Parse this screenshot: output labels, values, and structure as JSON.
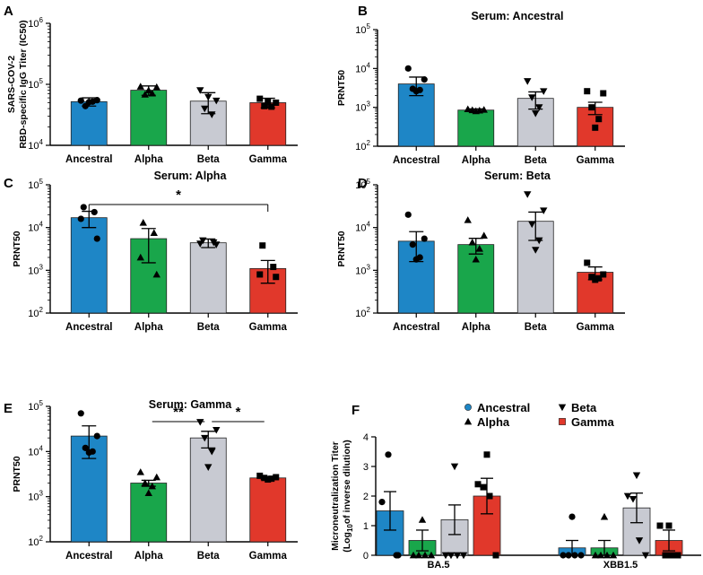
{
  "colors": {
    "Ancestral": "#1e86c6",
    "Alpha": "#19a64b",
    "Beta": "#c8cad2",
    "Gamma": "#e1382b"
  },
  "categories": [
    "Ancestral",
    "Alpha",
    "Beta",
    "Gamma"
  ],
  "chart_data": [
    {
      "id": "A",
      "type": "bar",
      "panel_label": "A",
      "title": "",
      "ylabel": [
        "SARS-COV-2",
        "RBD-specific IgG Titer (IC50)"
      ],
      "yscale": "log",
      "ylim": [
        10000,
        1000000
      ],
      "tick_labels": [
        {
          "base": "10",
          "exp": "4"
        },
        {
          "base": "10",
          "exp": "5"
        },
        {
          "base": "10",
          "exp": "6"
        }
      ],
      "categories": [
        "Ancestral",
        "Alpha",
        "Beta",
        "Gamma"
      ],
      "values": [
        52000,
        80000,
        53000,
        50000
      ],
      "errors": [
        8000,
        14000,
        20000,
        9000
      ],
      "points": [
        [
          54000,
          55000,
          44000,
          52000,
          51000
        ],
        [
          92000,
          90000,
          68000,
          71000,
          80000
        ],
        [
          80000,
          54000,
          40000,
          32000,
          62000
        ],
        [
          58000,
          50000,
          44000,
          43000,
          52000
        ]
      ],
      "markers": [
        "circle",
        "triangle",
        "triangle-down",
        "square"
      ],
      "significance": []
    },
    {
      "id": "B",
      "type": "bar",
      "panel_label": "B",
      "title": "Serum: Ancestral",
      "ylabel": [
        "PRNT50"
      ],
      "yscale": "log",
      "ylim": [
        100,
        100000
      ],
      "tick_labels": [
        {
          "base": "10",
          "exp": "2"
        },
        {
          "base": "10",
          "exp": "3"
        },
        {
          "base": "10",
          "exp": "4"
        },
        {
          "base": "10",
          "exp": "5"
        }
      ],
      "categories": [
        "Ancestral",
        "Alpha",
        "Beta",
        "Gamma"
      ],
      "values": [
        4000,
        850,
        1700,
        1000
      ],
      "errors": [
        2000,
        60,
        800,
        350
      ],
      "points": [
        [
          10000,
          5200,
          3000,
          2800,
          2600
        ],
        [
          900,
          870,
          850,
          830,
          800
        ],
        [
          4700,
          2600,
          1800,
          1000,
          700
        ],
        [
          2600,
          2300,
          1000,
          500,
          300
        ]
      ],
      "markers": [
        "circle",
        "triangle",
        "triangle-down",
        "square"
      ],
      "significance": []
    },
    {
      "id": "C",
      "type": "bar",
      "panel_label": "C",
      "title": "Serum: Alpha",
      "ylabel": [
        "PRNT50"
      ],
      "yscale": "log",
      "ylim": [
        100,
        100000
      ],
      "tick_labels": [
        {
          "base": "10",
          "exp": "2"
        },
        {
          "base": "10",
          "exp": "3"
        },
        {
          "base": "10",
          "exp": "4"
        },
        {
          "base": "10",
          "exp": "5"
        }
      ],
      "categories": [
        "Ancestral",
        "Alpha",
        "Beta",
        "Gamma"
      ],
      "values": [
        17000,
        5500,
        4400,
        1100
      ],
      "errors": [
        7000,
        4000,
        1000,
        600
      ],
      "points": [
        [
          30000,
          23000,
          16000,
          5500
        ],
        [
          13000,
          7500,
          2000,
          800
        ],
        [
          5000,
          4500,
          4200,
          4000
        ],
        [
          3800,
          1200,
          800,
          700
        ]
      ],
      "markers": [
        "circle",
        "triangle",
        "triangle-down",
        "square"
      ],
      "significance": [
        {
          "from": 0,
          "to": 3,
          "label": "*"
        }
      ]
    },
    {
      "id": "D",
      "type": "bar",
      "panel_label": "D",
      "title": "Serum: Beta",
      "ylabel": [
        "PRNT50"
      ],
      "yscale": "log",
      "ylim": [
        100,
        100000
      ],
      "tick_labels": [
        {
          "base": "10",
          "exp": "2"
        },
        {
          "base": "10",
          "exp": "3"
        },
        {
          "base": "10",
          "exp": "4"
        },
        {
          "base": "10",
          "exp": "5"
        }
      ],
      "categories": [
        "Ancestral",
        "Alpha",
        "Beta",
        "Gamma"
      ],
      "values": [
        4800,
        4000,
        14000,
        900
      ],
      "errors": [
        3200,
        1600,
        9000,
        300
      ],
      "points": [
        [
          20000,
          5500,
          4000,
          2000,
          1800
        ],
        [
          15000,
          6500,
          4500,
          3200,
          1800
        ],
        [
          60000,
          25000,
          12000,
          5000,
          3000
        ],
        [
          1500,
          800,
          700,
          650,
          600
        ]
      ],
      "markers": [
        "circle",
        "triangle",
        "triangle-down",
        "square"
      ],
      "significance": []
    },
    {
      "id": "E",
      "type": "bar",
      "panel_label": "E",
      "title": "Serum: Gamma",
      "ylabel": [
        "PRNT50"
      ],
      "yscale": "log",
      "ylim": [
        100,
        100000
      ],
      "tick_labels": [
        {
          "base": "10",
          "exp": "2"
        },
        {
          "base": "10",
          "exp": "3"
        },
        {
          "base": "10",
          "exp": "4"
        },
        {
          "base": "10",
          "exp": "5"
        }
      ],
      "categories": [
        "Ancestral",
        "Alpha",
        "Beta",
        "Gamma"
      ],
      "values": [
        22000,
        2000,
        20000,
        2600
      ],
      "errors": [
        15000,
        300,
        8000,
        200
      ],
      "points": [
        [
          70000,
          22000,
          12000,
          10000,
          9500
        ],
        [
          3500,
          2700,
          2000,
          1700,
          1200
        ],
        [
          45000,
          30000,
          20000,
          10000,
          4500
        ],
        [
          2900,
          2700,
          2600,
          2500,
          2400
        ]
      ],
      "markers": [
        "circle",
        "triangle",
        "triangle-down",
        "square"
      ],
      "significance": [
        {
          "from": 1,
          "to": 2,
          "label": "**"
        },
        {
          "from": 2,
          "to": 3,
          "label": "*"
        }
      ]
    },
    {
      "id": "F",
      "type": "bar",
      "panel_label": "F",
      "title": "",
      "ylabel": [
        "Microneutralization Titer",
        "(Log10of inverse dilution)"
      ],
      "ylabel_parts": {
        "line2_pre": "(Log",
        "line2_sub": "10",
        "line2_post": "of inverse dilution)"
      },
      "yscale": "linear",
      "ylim": [
        0,
        4
      ],
      "tick_labels": [
        "0",
        "1",
        "2",
        "3",
        "4"
      ],
      "groups": [
        "BA.5",
        "XBB1.5"
      ],
      "series": [
        {
          "name": "Ancestral",
          "values": [
            1.5,
            0.25
          ],
          "errors": [
            0.65,
            0.25
          ],
          "points": [
            [
              3.4,
              1.8,
              0,
              0
            ],
            [
              1.3,
              0,
              0,
              0,
              0
            ]
          ]
        },
        {
          "name": "Alpha",
          "values": [
            0.5,
            0.25
          ],
          "errors": [
            0.35,
            0.25
          ],
          "points": [
            [
              1.2,
              0,
              0,
              0,
              0
            ],
            [
              1.3,
              0,
              0,
              0,
              0
            ]
          ]
        },
        {
          "name": "Beta",
          "values": [
            1.2,
            1.6
          ],
          "errors": [
            0.5,
            0.5
          ],
          "points": [
            [
              3.0,
              0,
              0,
              0,
              0
            ],
            [
              2.7,
              2.0,
              1.9,
              0.5,
              0
            ]
          ]
        },
        {
          "name": "Gamma",
          "values": [
            2.0,
            0.5
          ],
          "errors": [
            0.6,
            0.35
          ],
          "points": [
            [
              3.4,
              2.4,
              2.3,
              2.0,
              0
            ],
            [
              1.0,
              1.0,
              0,
              0,
              0
            ]
          ]
        }
      ],
      "markers": [
        "circle",
        "triangle",
        "triangle-down",
        "square"
      ],
      "legend": [
        "Ancestral",
        "Alpha",
        "Beta",
        "Gamma"
      ],
      "significance": []
    }
  ]
}
